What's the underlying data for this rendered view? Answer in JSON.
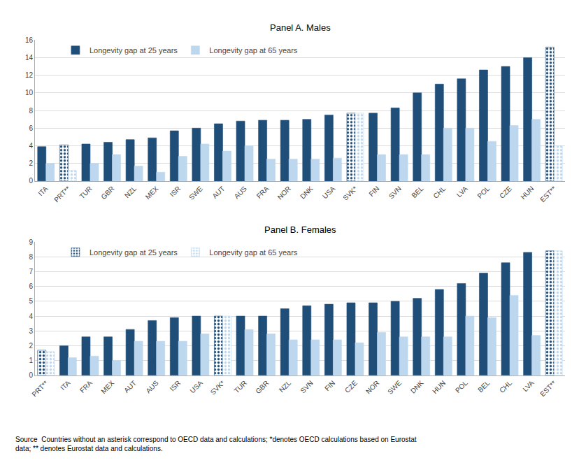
{
  "chart_data": [
    {
      "type": "bar",
      "title": "Panel A. Males",
      "categories": [
        "ITA",
        "PRT**",
        "TUR",
        "GBR",
        "NZL",
        "MEX",
        "ISR",
        "SWE",
        "AUT",
        "AUS",
        "FRA",
        "NOR",
        "DNK",
        "USA",
        "SVK*",
        "FIN",
        "SVN",
        "BEL",
        "CHL",
        "LVA",
        "POL",
        "CZE",
        "HUN",
        "EST**"
      ],
      "series": [
        {
          "name": "Longevity gap at 25 years",
          "color": "#1f4e79",
          "values": [
            3.9,
            4.1,
            4.2,
            4.4,
            4.7,
            4.9,
            5.7,
            6.0,
            6.5,
            6.8,
            6.9,
            6.9,
            7.0,
            7.5,
            7.7,
            7.7,
            8.3,
            10.0,
            11.0,
            11.6,
            12.6,
            13.0,
            14.0,
            15.2
          ]
        },
        {
          "name": "Longevity gap at 65 years",
          "color": "#bdd7ee",
          "values": [
            2.0,
            1.2,
            2.0,
            3.0,
            1.7,
            1.0,
            2.8,
            4.2,
            3.4,
            4.0,
            2.5,
            2.5,
            2.5,
            2.6,
            7.7,
            3.0,
            3.0,
            3.0,
            6.0,
            6.0,
            4.5,
            6.3,
            7.0,
            4.0
          ]
        }
      ],
      "ylim": [
        0,
        16
      ],
      "yticks": [
        0,
        2,
        4,
        6,
        8,
        10,
        12,
        14,
        16
      ],
      "grid": true,
      "legend": "upper left"
    },
    {
      "type": "bar",
      "title": "Panel B. Females",
      "categories": [
        "PRT**",
        "ITA",
        "FRA",
        "MEX",
        "AUT",
        "AUS",
        "ISR",
        "USA",
        "SVK*",
        "TUR",
        "GBR",
        "NZL",
        "SVN",
        "FIN",
        "CZE",
        "NOR",
        "SWE",
        "DNK",
        "HUN",
        "POL",
        "BEL",
        "CHL",
        "LVA",
        "EST**"
      ],
      "series": [
        {
          "name": "Longevity gap at 25 years",
          "color": "#1f4e79",
          "values": [
            1.7,
            2.0,
            2.6,
            2.6,
            3.1,
            3.7,
            3.9,
            4.0,
            4.0,
            4.0,
            4.0,
            4.5,
            4.7,
            4.8,
            4.9,
            4.9,
            5.0,
            5.2,
            5.8,
            6.2,
            6.9,
            7.6,
            8.3,
            8.4
          ]
        },
        {
          "name": "Longevity gap at 65 years",
          "color": "#bdd7ee",
          "values": [
            1.6,
            1.2,
            1.3,
            1.0,
            2.3,
            2.3,
            2.3,
            2.8,
            4.0,
            3.1,
            2.8,
            2.4,
            2.4,
            2.4,
            2.2,
            2.9,
            2.6,
            2.6,
            2.6,
            4.0,
            3.9,
            5.4,
            2.7,
            8.4
          ]
        }
      ],
      "ylim": [
        0,
        9
      ],
      "yticks": [
        0,
        1,
        2,
        3,
        4,
        5,
        6,
        7,
        8,
        9
      ],
      "grid": true,
      "legend": "upper left",
      "annotations": [
        "Source  Countries without an asterisk correspond to OECD data and calculations; *denotes OECD calculations based on Eurostat\ndata; ** denotes Eurostat data and calculations."
      ]
    }
  ]
}
